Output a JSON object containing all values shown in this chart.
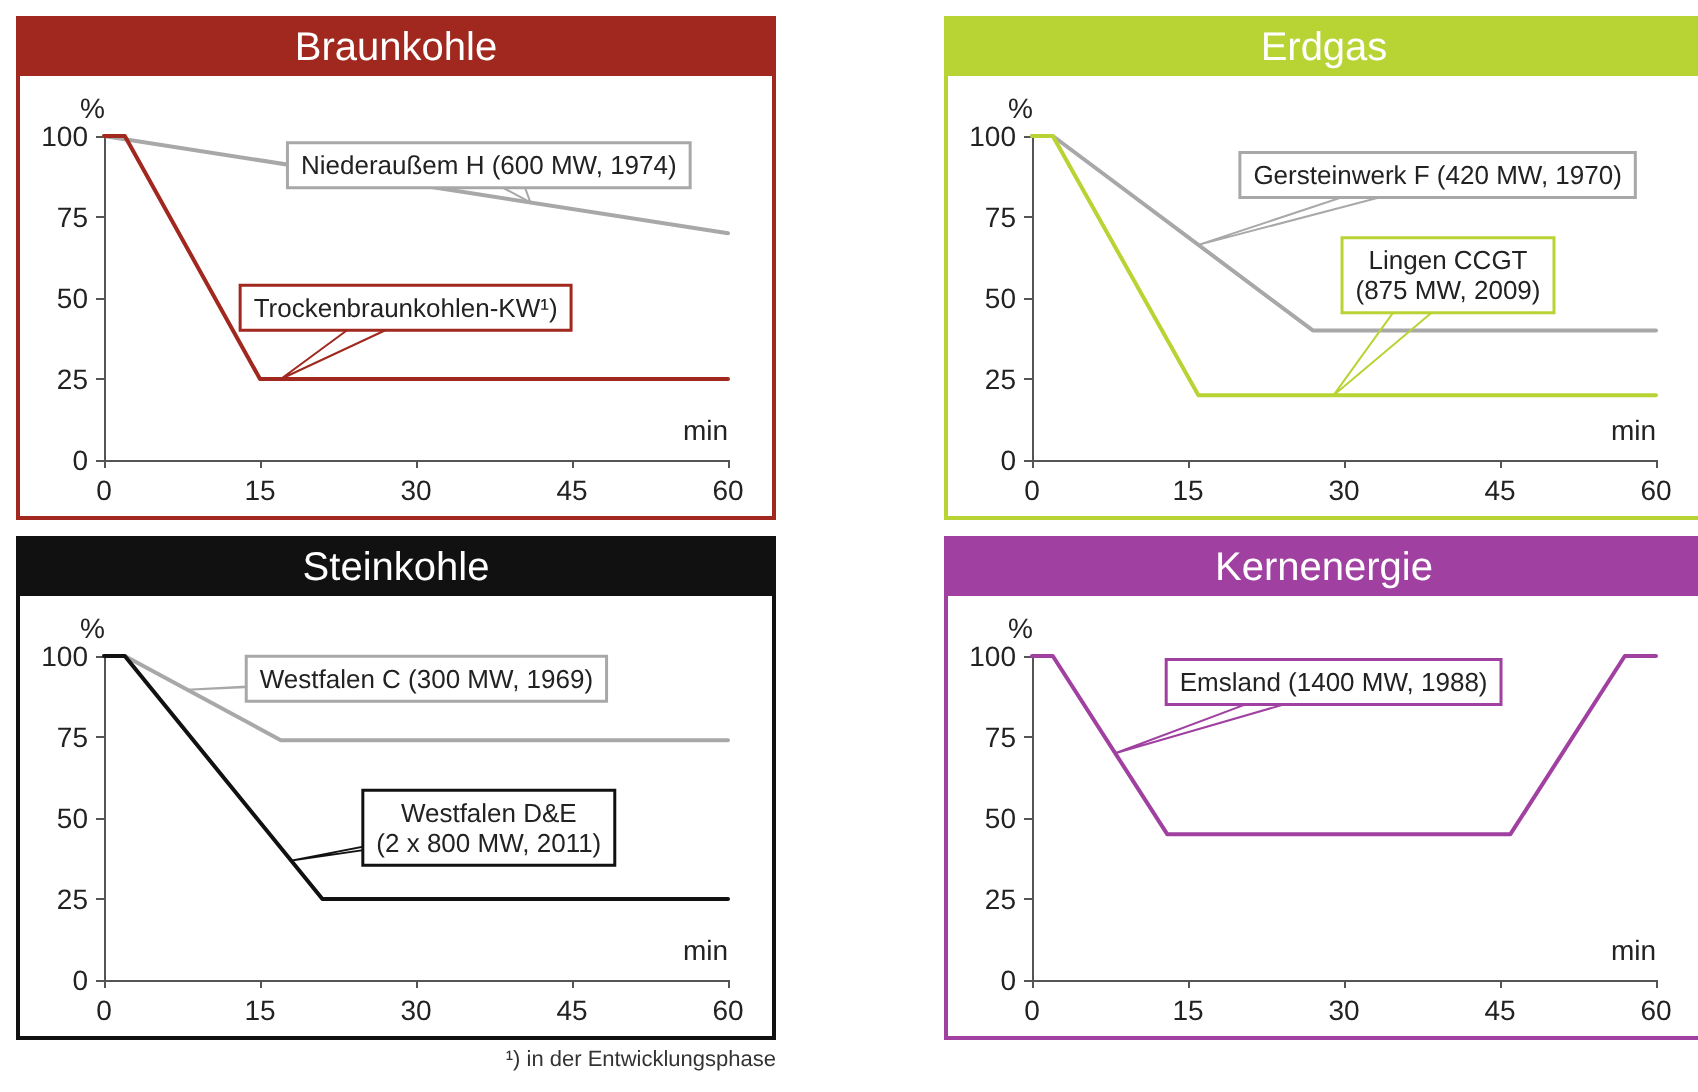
{
  "chart_data": [
    {
      "type": "line",
      "title": "Braunkohle",
      "xlabel": "min",
      "ylabel": "%",
      "xlim": [
        0,
        60
      ],
      "xticks": [
        0,
        15,
        30,
        45,
        60
      ],
      "ylim": [
        0,
        100
      ],
      "yticks": [
        0,
        25,
        50,
        75,
        100
      ],
      "grid": false,
      "legend": false,
      "marker": "none",
      "line_style": "solid",
      "series": [
        {
          "name": "Niederaußem H (600 MW, 1974)",
          "color": "#a8a8a8",
          "x": [
            0,
            60
          ],
          "values": [
            100,
            70
          ]
        },
        {
          "name": "Trockenbraunkohlen-KW¹)",
          "color": "#a0281e",
          "x": [
            0,
            2,
            15,
            60
          ],
          "values": [
            100,
            100,
            25,
            25
          ]
        }
      ]
    },
    {
      "type": "line",
      "title": "Erdgas",
      "xlabel": "min",
      "ylabel": "%",
      "xlim": [
        0,
        60
      ],
      "xticks": [
        0,
        15,
        30,
        45,
        60
      ],
      "ylim": [
        0,
        100
      ],
      "yticks": [
        0,
        25,
        50,
        75,
        100
      ],
      "grid": false,
      "legend": false,
      "marker": "none",
      "line_style": "solid",
      "series": [
        {
          "name": "Gersteinwerk F (420 MW, 1970)",
          "color": "#a8a8a8",
          "x": [
            0,
            2,
            27,
            60
          ],
          "values": [
            100,
            100,
            40,
            40
          ]
        },
        {
          "name": "Lingen CCGT (875 MW, 2009)",
          "color": "#b8d434",
          "x": [
            0,
            2,
            16,
            60
          ],
          "values": [
            100,
            100,
            20,
            20
          ]
        }
      ]
    },
    {
      "type": "line",
      "title": "Steinkohle",
      "xlabel": "min",
      "ylabel": "%",
      "xlim": [
        0,
        60
      ],
      "xticks": [
        0,
        15,
        30,
        45,
        60
      ],
      "ylim": [
        0,
        100
      ],
      "yticks": [
        0,
        25,
        50,
        75,
        100
      ],
      "grid": false,
      "legend": false,
      "marker": "none",
      "line_style": "solid",
      "annotations": [
        "¹) in der Entwicklungsphase"
      ],
      "series": [
        {
          "name": "Westfalen C (300 MW, 1969)",
          "color": "#a8a8a8",
          "x": [
            0,
            2,
            17,
            60
          ],
          "values": [
            100,
            100,
            74,
            74
          ]
        },
        {
          "name": "Westfalen D&E (2 x 800 MW, 2011)",
          "color": "#111111",
          "x": [
            0,
            2,
            21,
            60
          ],
          "values": [
            100,
            100,
            25,
            25
          ]
        }
      ]
    },
    {
      "type": "line",
      "title": "Kernenergie",
      "xlabel": "min",
      "ylabel": "%",
      "xlim": [
        0,
        60
      ],
      "xticks": [
        0,
        15,
        30,
        45,
        60
      ],
      "ylim": [
        0,
        100
      ],
      "yticks": [
        0,
        25,
        50,
        75,
        100
      ],
      "grid": false,
      "legend": false,
      "marker": "none",
      "line_style": "solid",
      "series": [
        {
          "name": "Emsland (1400 MW, 1988)",
          "color": "#a040a0",
          "x": [
            0,
            2,
            13,
            46,
            57,
            60
          ],
          "values": [
            100,
            100,
            45,
            45,
            100,
            100
          ]
        }
      ]
    }
  ]
}
